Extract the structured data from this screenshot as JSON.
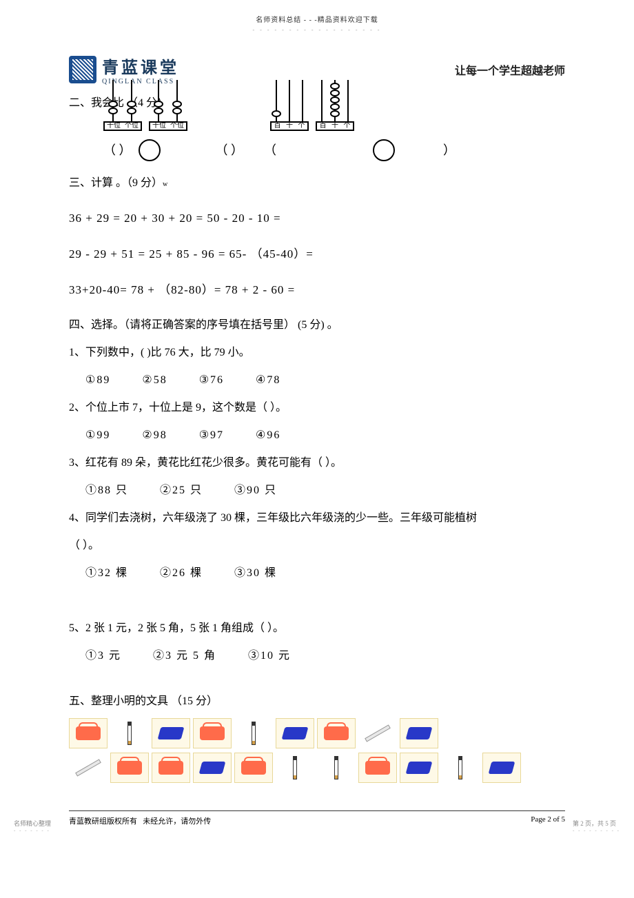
{
  "header": {
    "top": "名师资料总结 - - -精品资料欢迎下载",
    "logo_cn": "青蓝课堂",
    "logo_en": "QINGLAN  CLASS",
    "slogan": "让每一个学生超越老师"
  },
  "sections": {
    "s2": {
      "title": "二、我会比 （4 分）"
    },
    "s3": {
      "title": "三、计算 。（9 分）",
      "lines": [
        "36 + 29 =     20     + 30 + 20 =        50      - 20 - 10 =",
        "29  - 29 + 51 =        25 + 85 - 96 =       65-       （45-40）=",
        "33+20-40=     78 +       （82-80）=     78 + 2 - 60 ="
      ]
    },
    "s4": {
      "title": "四、选择。（请将正确答案的序号填在括号里）   (5  分) 。",
      "questions": [
        {
          "stem": "1、下列数中，(      )比 76 大，比 79 小。",
          "opts": [
            "①89",
            "②58",
            "③76",
            "④78"
          ]
        },
        {
          "stem": "2、个位上市  7，十位上是  9，这个数是（      ）。",
          "opts": [
            "①99",
            "②98",
            "③97",
            "④96"
          ]
        },
        {
          "stem": "3、红花有  89 朵，黄花比红花少很多。黄花可能有（        ）。",
          "opts": [
            "①88 只",
            "②25 只",
            "③90 只"
          ]
        },
        {
          "stem": "4、同学们去浇树，六年级浇了   30 棵，三年级比六年级浇的少一些。三年级可能植树",
          "stem2": "（      ）。",
          "opts": [
            "①32 棵",
            "②26 棵",
            "③30 棵"
          ]
        },
        {
          "stem": "5、2 张 1 元，2 张 5 角，5 张 1 角组成（      ）。",
          "opts": [
            "①3 元",
            "②3 元 5 角",
            "③10 元"
          ]
        }
      ]
    },
    "s5": {
      "title": "五、整理小明的文具  （15 分）"
    }
  },
  "abacus": {
    "labels2": [
      "十位",
      "个位"
    ],
    "labels3": [
      "百",
      "十",
      "个"
    ]
  },
  "answer_row": {
    "p1": "（   ）",
    "p2": "（   ）",
    "p3": "（",
    "p4": "）"
  },
  "supplies_rows": [
    [
      "box",
      "pen",
      "eraser",
      "box",
      "pen",
      "eraser",
      "box",
      "ruler",
      "eraser"
    ],
    [
      "ruler",
      "box",
      "box",
      "eraser",
      "box",
      "pen",
      "pen",
      "box",
      "eraser",
      "pen",
      "eraser"
    ]
  ],
  "footer": {
    "left": "青蓝教研组版权所有",
    "mid": "未经允许，请勿外传",
    "right": "Page  2  of  5",
    "bl": "名师精心整理",
    "br": "第 2 页，共 5 页"
  }
}
